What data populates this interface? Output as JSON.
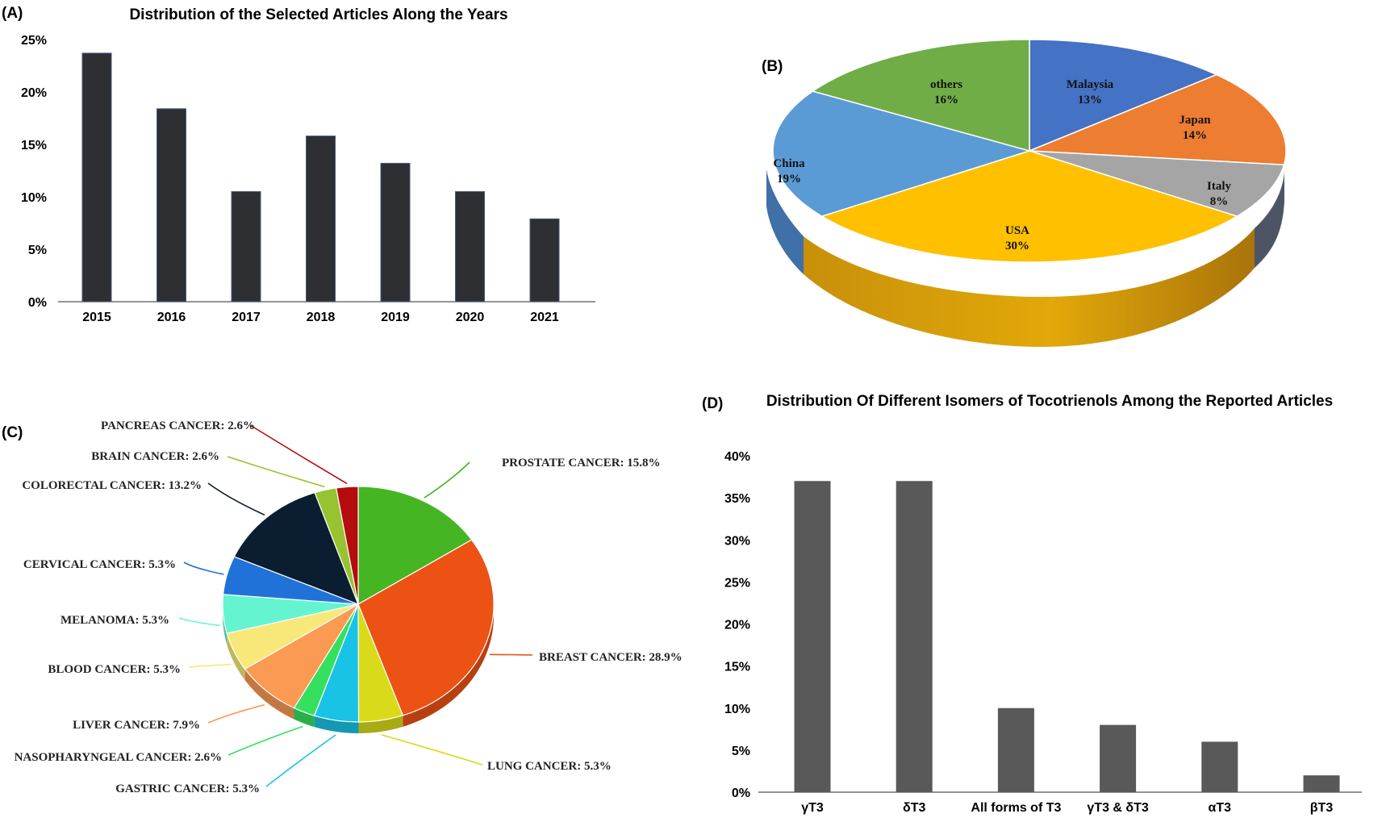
{
  "chart_data": [
    {
      "panel": "(A)",
      "type": "bar",
      "title": "Distribution of the Selected Articles Along the Years",
      "categories": [
        "2015",
        "2016",
        "2017",
        "2018",
        "2019",
        "2020",
        "2021"
      ],
      "values": [
        23.7,
        18.4,
        10.5,
        15.8,
        13.2,
        10.5,
        7.9
      ],
      "ylim": [
        0,
        25
      ],
      "yticks": [
        "0%",
        "5%",
        "10%",
        "15%",
        "20%",
        "25%"
      ],
      "bar_color": "#2d2f33",
      "grid": false
    },
    {
      "panel": "(B)",
      "type": "pie",
      "style": "3d",
      "slices": [
        {
          "label": "Malaysia",
          "pct": "13%",
          "value": 13,
          "color": "#4472c4"
        },
        {
          "label": "Japan",
          "pct": "14%",
          "value": 14,
          "color": "#ed7d31"
        },
        {
          "label": "Italy",
          "pct": "8%",
          "value": 8,
          "color": "#a5a5a5"
        },
        {
          "label": "USA",
          "pct": "30%",
          "value": 30,
          "color": "#ffc000"
        },
        {
          "label": "China",
          "pct": "19%",
          "value": 19,
          "color": "#5b9bd5"
        },
        {
          "label": "others",
          "pct": "16%",
          "value": 16,
          "color": "#70ad47"
        }
      ]
    },
    {
      "panel": "(C)",
      "type": "pie",
      "style": "3d",
      "slices": [
        {
          "label": "PROSTATE CANCER: 15.8%",
          "value": 15.8,
          "color": "#46b523"
        },
        {
          "label": "BREAST CANCER: 28.9%",
          "value": 28.9,
          "color": "#ec5214"
        },
        {
          "label": "LUNG CANCER: 5.3%",
          "value": 5.3,
          "color": "#d9db1a"
        },
        {
          "label": "GASTRIC CANCER: 5.3%",
          "value": 5.3,
          "color": "#19c3e6"
        },
        {
          "label": "NASOPHARYNGEAL CANCER: 2.6%",
          "value": 2.6,
          "color": "#35e05f"
        },
        {
          "label": "LIVER CANCER: 7.9%",
          "value": 7.9,
          "color": "#fb9a53"
        },
        {
          "label": "BLOOD CANCER: 5.3%",
          "value": 5.3,
          "color": "#f8e87a"
        },
        {
          "label": "MELANOMA: 5.3%",
          "value": 5.3,
          "color": "#64f5d0"
        },
        {
          "label": "CERVICAL CANCER: 5.3%",
          "value": 5.3,
          "color": "#2172d8"
        },
        {
          "label": "COLORECTAL CANCER: 13.2%",
          "value": 13.2,
          "color": "#0b1d30"
        },
        {
          "label": "BRAIN CANCER: 2.6%",
          "value": 2.6,
          "color": "#97c330"
        },
        {
          "label": "PANCREAS CANCER: 2.6%",
          "value": 2.6,
          "color": "#b50d0d"
        }
      ]
    },
    {
      "panel": "(D)",
      "type": "bar",
      "title": "Distribution Of Different Isomers of Tocotrienols Among the Reported Articles",
      "categories": [
        "γT3",
        "δT3",
        "All forms of T3",
        "γT3 & δT3",
        "αT3",
        "βT3"
      ],
      "values": [
        37,
        37,
        10,
        8,
        6,
        2
      ],
      "ylim": [
        0,
        40
      ],
      "yticks": [
        "0%",
        "5%",
        "10%",
        "15%",
        "20%",
        "25%",
        "30%",
        "35%",
        "40%"
      ],
      "bar_color": "#595959",
      "grid": false
    }
  ]
}
